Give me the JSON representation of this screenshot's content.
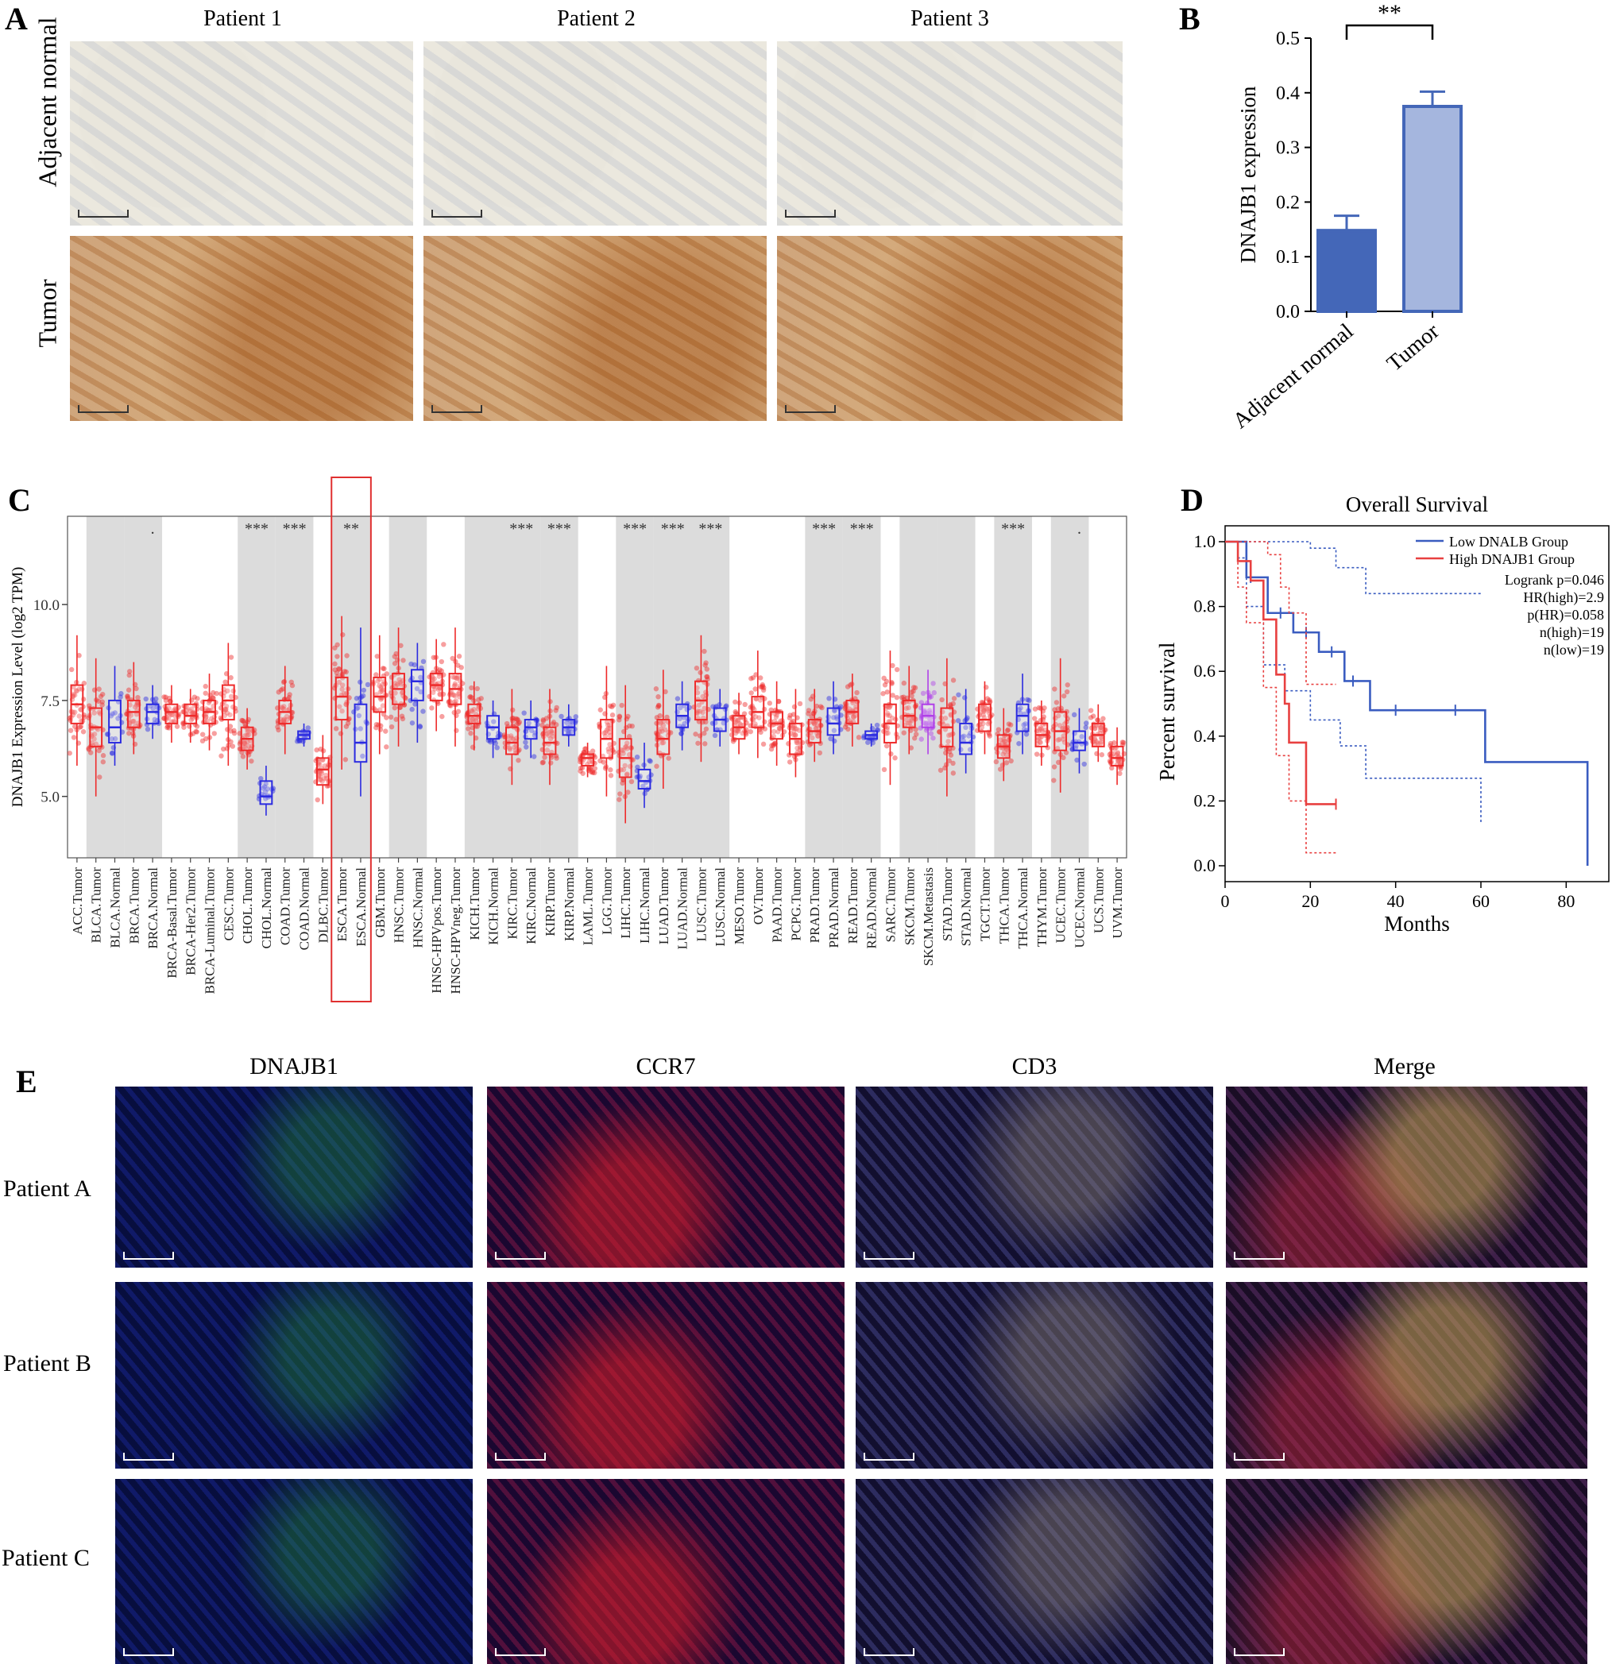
{
  "panels": {
    "a": {
      "letter": "A",
      "columns": [
        "Patient 1",
        "Patient 2",
        "Patient 3"
      ],
      "rows": [
        "Adjacent normal",
        "Tumor"
      ]
    },
    "b": {
      "letter": "B"
    },
    "c": {
      "letter": "C"
    },
    "d": {
      "letter": "D"
    },
    "e": {
      "letter": "E",
      "columns": [
        "DNAJB1",
        "CCR7",
        "CD3",
        "Merge"
      ],
      "rows": [
        "Patient A",
        "Patient B",
        "Patient C"
      ]
    }
  },
  "chart_data": [
    {
      "id": "B",
      "type": "bar",
      "categories": [
        "Adjacent normal",
        "Tumor"
      ],
      "values": [
        0.148,
        0.375
      ],
      "errors": [
        0.027,
        0.027
      ],
      "ylabel": "DNAJB1 expression",
      "ylim": [
        0,
        0.5
      ],
      "yticks": [
        "0.0",
        "0.1",
        "0.2",
        "0.3",
        "0.4",
        "0.5"
      ],
      "significance": "**",
      "colors": [
        "#4467b8",
        "#a5b6de"
      ],
      "edge_color": "#4467b8"
    },
    {
      "id": "C",
      "type": "box",
      "ylabel": "DNAJB1 Expression Level (log2 TPM)",
      "ylim": [
        3.4,
        12.3
      ],
      "yticks": [
        "5.0",
        "7.5",
        "10.0"
      ],
      "categories": [
        {
          "label": "ACC.Tumor",
          "kind": "T",
          "median": 7.4,
          "q1": 6.9,
          "q3": 7.9,
          "lo": 5.8,
          "hi": 9.2
        },
        {
          "label": "BLCA.Tumor",
          "kind": "T",
          "median": 6.8,
          "q1": 6.3,
          "q3": 7.3,
          "lo": 5.0,
          "hi": 8.6
        },
        {
          "label": "BLCA.Normal",
          "kind": "N",
          "median": 6.8,
          "q1": 6.4,
          "q3": 7.5,
          "lo": 5.8,
          "hi": 8.4
        },
        {
          "label": "BRCA.Tumor",
          "kind": "T",
          "median": 7.2,
          "q1": 6.8,
          "q3": 7.5,
          "lo": 6.1,
          "hi": 8.5
        },
        {
          "label": "BRCA.Normal",
          "kind": "N",
          "median": 7.2,
          "q1": 6.9,
          "q3": 7.4,
          "lo": 6.5,
          "hi": 7.9
        },
        {
          "label": "BRCA-Basal.Tumor",
          "kind": "T",
          "median": 7.2,
          "q1": 6.9,
          "q3": 7.4,
          "lo": 6.4,
          "hi": 7.9
        },
        {
          "label": "BRCA-Her2.Tumor",
          "kind": "T",
          "median": 7.1,
          "q1": 6.9,
          "q3": 7.4,
          "lo": 6.4,
          "hi": 7.8
        },
        {
          "label": "BRCA-Luminal.Tumor",
          "kind": "T",
          "median": 7.2,
          "q1": 6.9,
          "q3": 7.5,
          "lo": 6.2,
          "hi": 8.2
        },
        {
          "label": "CESC.Tumor",
          "kind": "T",
          "median": 7.5,
          "q1": 7.0,
          "q3": 7.9,
          "lo": 5.8,
          "hi": 9.0
        },
        {
          "label": "CHOL.Tumor",
          "kind": "T",
          "median": 6.5,
          "q1": 6.2,
          "q3": 6.8,
          "lo": 5.7,
          "hi": 7.3
        },
        {
          "label": "CHOL.Normal",
          "kind": "N",
          "median": 5.0,
          "q1": 4.8,
          "q3": 5.4,
          "lo": 4.5,
          "hi": 5.8
        },
        {
          "label": "COAD.Tumor",
          "kind": "T",
          "median": 7.2,
          "q1": 6.9,
          "q3": 7.5,
          "lo": 6.1,
          "hi": 8.4
        },
        {
          "label": "COAD.Normal",
          "kind": "N",
          "median": 6.6,
          "q1": 6.5,
          "q3": 6.7,
          "lo": 6.3,
          "hi": 6.9
        },
        {
          "label": "DLBC.Tumor",
          "kind": "T",
          "median": 5.7,
          "q1": 5.3,
          "q3": 6.0,
          "lo": 4.8,
          "hi": 6.6
        },
        {
          "label": "ESCA.Tumor",
          "kind": "T",
          "median": 7.6,
          "q1": 7.0,
          "q3": 8.1,
          "lo": 5.7,
          "hi": 9.7
        },
        {
          "label": "ESCA.Normal",
          "kind": "N",
          "median": 6.4,
          "q1": 5.9,
          "q3": 7.4,
          "lo": 5.0,
          "hi": 9.4
        },
        {
          "label": "GBM.Tumor",
          "kind": "T",
          "median": 7.6,
          "q1": 7.2,
          "q3": 8.1,
          "lo": 6.1,
          "hi": 9.2
        },
        {
          "label": "HNSC.Tumor",
          "kind": "T",
          "median": 7.8,
          "q1": 7.4,
          "q3": 8.2,
          "lo": 6.3,
          "hi": 9.4
        },
        {
          "label": "HNSC.Normal",
          "kind": "N",
          "median": 8.0,
          "q1": 7.5,
          "q3": 8.3,
          "lo": 6.4,
          "hi": 9.0
        },
        {
          "label": "HNSC-HPVpos.Tumor",
          "kind": "T",
          "median": 7.9,
          "q1": 7.5,
          "q3": 8.2,
          "lo": 6.7,
          "hi": 9.1
        },
        {
          "label": "HNSC-HPVneg.Tumor",
          "kind": "T",
          "median": 7.8,
          "q1": 7.4,
          "q3": 8.2,
          "lo": 6.3,
          "hi": 9.4
        },
        {
          "label": "KICH.Tumor",
          "kind": "T",
          "median": 7.1,
          "q1": 6.9,
          "q3": 7.4,
          "lo": 6.2,
          "hi": 8.0
        },
        {
          "label": "KICH.Normal",
          "kind": "N",
          "median": 6.8,
          "q1": 6.5,
          "q3": 7.1,
          "lo": 6.0,
          "hi": 7.5
        },
        {
          "label": "KIRC.Tumor",
          "kind": "T",
          "median": 6.4,
          "q1": 6.1,
          "q3": 6.8,
          "lo": 5.3,
          "hi": 7.8
        },
        {
          "label": "KIRC.Normal",
          "kind": "N",
          "median": 6.8,
          "q1": 6.5,
          "q3": 7.0,
          "lo": 6.0,
          "hi": 7.5
        },
        {
          "label": "KIRP.Tumor",
          "kind": "T",
          "median": 6.4,
          "q1": 6.1,
          "q3": 6.8,
          "lo": 5.3,
          "hi": 7.8
        },
        {
          "label": "KIRP.Normal",
          "kind": "N",
          "median": 6.8,
          "q1": 6.6,
          "q3": 7.0,
          "lo": 6.3,
          "hi": 7.4
        },
        {
          "label": "LAML.Tumor",
          "kind": "T",
          "median": 6.0,
          "q1": 5.8,
          "q3": 6.1,
          "lo": 5.5,
          "hi": 6.4
        },
        {
          "label": "LGG.Tumor",
          "kind": "T",
          "median": 6.5,
          "q1": 6.0,
          "q3": 7.0,
          "lo": 5.0,
          "hi": 8.4
        },
        {
          "label": "LIHC.Tumor",
          "kind": "T",
          "median": 6.0,
          "q1": 5.5,
          "q3": 6.5,
          "lo": 4.3,
          "hi": 7.9
        },
        {
          "label": "LIHC.Normal",
          "kind": "N",
          "median": 5.4,
          "q1": 5.2,
          "q3": 5.7,
          "lo": 4.7,
          "hi": 6.4
        },
        {
          "label": "LUAD.Tumor",
          "kind": "T",
          "median": 6.5,
          "q1": 6.1,
          "q3": 7.0,
          "lo": 5.2,
          "hi": 8.3
        },
        {
          "label": "LUAD.Normal",
          "kind": "N",
          "median": 7.1,
          "q1": 6.8,
          "q3": 7.4,
          "lo": 6.2,
          "hi": 8.0
        },
        {
          "label": "LUSC.Tumor",
          "kind": "T",
          "median": 7.5,
          "q1": 7.0,
          "q3": 8.0,
          "lo": 5.9,
          "hi": 9.2
        },
        {
          "label": "LUSC.Normal",
          "kind": "N",
          "median": 7.0,
          "q1": 6.7,
          "q3": 7.3,
          "lo": 6.3,
          "hi": 7.8
        },
        {
          "label": "MESO.Tumor",
          "kind": "T",
          "median": 6.8,
          "q1": 6.5,
          "q3": 7.1,
          "lo": 6.1,
          "hi": 7.7
        },
        {
          "label": "OV.Tumor",
          "kind": "T",
          "median": 7.2,
          "q1": 6.8,
          "q3": 7.6,
          "lo": 6.0,
          "hi": 8.8
        },
        {
          "label": "PAAD.Tumor",
          "kind": "T",
          "median": 6.9,
          "q1": 6.5,
          "q3": 7.2,
          "lo": 5.8,
          "hi": 8.0
        },
        {
          "label": "PCPG.Tumor",
          "kind": "T",
          "median": 6.5,
          "q1": 6.1,
          "q3": 6.9,
          "lo": 5.5,
          "hi": 7.8
        },
        {
          "label": "PRAD.Tumor",
          "kind": "T",
          "median": 6.7,
          "q1": 6.4,
          "q3": 7.0,
          "lo": 5.9,
          "hi": 7.8
        },
        {
          "label": "PRAD.Normal",
          "kind": "N",
          "median": 6.9,
          "q1": 6.6,
          "q3": 7.3,
          "lo": 6.1,
          "hi": 8.0
        },
        {
          "label": "READ.Tumor",
          "kind": "T",
          "median": 7.2,
          "q1": 6.9,
          "q3": 7.5,
          "lo": 6.3,
          "hi": 8.2
        },
        {
          "label": "READ.Normal",
          "kind": "N",
          "median": 6.6,
          "q1": 6.5,
          "q3": 6.7,
          "lo": 6.3,
          "hi": 6.9
        },
        {
          "label": "SARC.Tumor",
          "kind": "T",
          "median": 6.9,
          "q1": 6.4,
          "q3": 7.4,
          "lo": 5.3,
          "hi": 8.8
        },
        {
          "label": "SKCM.Tumor",
          "kind": "T",
          "median": 7.1,
          "q1": 6.8,
          "q3": 7.5,
          "lo": 6.1,
          "hi": 8.4
        },
        {
          "label": "SKCM.Metastasis",
          "kind": "M",
          "median": 7.1,
          "q1": 6.8,
          "q3": 7.4,
          "lo": 6.1,
          "hi": 8.3
        },
        {
          "label": "STAD.Tumor",
          "kind": "T",
          "median": 6.8,
          "q1": 6.3,
          "q3": 7.3,
          "lo": 5.0,
          "hi": 8.6
        },
        {
          "label": "STAD.Normal",
          "kind": "N",
          "median": 6.4,
          "q1": 6.1,
          "q3": 6.9,
          "lo": 5.6,
          "hi": 7.8
        },
        {
          "label": "TGCT.Tumor",
          "kind": "T",
          "median": 7.0,
          "q1": 6.7,
          "q3": 7.4,
          "lo": 6.1,
          "hi": 8.0
        },
        {
          "label": "THCA.Tumor",
          "kind": "T",
          "median": 6.3,
          "q1": 6.0,
          "q3": 6.6,
          "lo": 5.4,
          "hi": 7.3
        },
        {
          "label": "THCA.Normal",
          "kind": "N",
          "median": 7.1,
          "q1": 6.7,
          "q3": 7.4,
          "lo": 6.1,
          "hi": 8.2
        },
        {
          "label": "THYM.Tumor",
          "kind": "T",
          "median": 6.6,
          "q1": 6.3,
          "q3": 6.9,
          "lo": 5.8,
          "hi": 7.5
        },
        {
          "label": "UCEC.Tumor",
          "kind": "T",
          "median": 6.7,
          "q1": 6.2,
          "q3": 7.2,
          "lo": 5.1,
          "hi": 8.6
        },
        {
          "label": "UCEC.Normal",
          "kind": "N",
          "median": 6.4,
          "q1": 6.2,
          "q3": 6.7,
          "lo": 5.6,
          "hi": 7.3
        },
        {
          "label": "UCS.Tumor",
          "kind": "T",
          "median": 6.6,
          "q1": 6.3,
          "q3": 6.9,
          "lo": 5.9,
          "hi": 7.4
        },
        {
          "label": "UVM.Tumor",
          "kind": "T",
          "median": 6.0,
          "q1": 5.8,
          "q3": 6.3,
          "lo": 5.3,
          "hi": 6.8
        }
      ],
      "shaded_groups": [
        [
          1,
          2
        ],
        [
          3,
          4
        ],
        [
          9,
          10
        ],
        [
          11,
          12
        ],
        [
          14,
          15
        ],
        [
          17,
          18
        ],
        [
          21,
          22
        ],
        [
          23,
          24
        ],
        [
          25,
          26
        ],
        [
          29,
          30
        ],
        [
          31,
          32
        ],
        [
          33,
          34
        ],
        [
          39,
          40
        ],
        [
          41,
          42
        ],
        [
          44,
          45
        ],
        [
          46,
          47
        ],
        [
          49,
          50
        ],
        [
          52,
          53
        ]
      ],
      "significance": [
        {
          "index": 4,
          "text": "."
        },
        {
          "index": 9.5,
          "text": "***"
        },
        {
          "index": 11.5,
          "text": "***"
        },
        {
          "index": 14.5,
          "text": "**"
        },
        {
          "index": 23.5,
          "text": "***"
        },
        {
          "index": 25.5,
          "text": "***"
        },
        {
          "index": 29.5,
          "text": "***"
        },
        {
          "index": 31.5,
          "text": "***"
        },
        {
          "index": 33.5,
          "text": "***"
        },
        {
          "index": 39.5,
          "text": "***"
        },
        {
          "index": 41.5,
          "text": "***"
        },
        {
          "index": 49.5,
          "text": "***"
        },
        {
          "index": 53,
          "text": "."
        }
      ],
      "highlight_indices": [
        14,
        15
      ],
      "colors": {
        "tumor": "#ee2b2b",
        "normal": "#2b2be0",
        "metastasis": "#b040e8",
        "shade": "#dcdcdc",
        "highlight": "#e03030"
      }
    },
    {
      "id": "D",
      "type": "line",
      "title": "Overall Survival",
      "xlabel": "Months",
      "ylabel": "Percent survival",
      "xlim": [
        0,
        90
      ],
      "ylim": [
        0,
        1.0
      ],
      "xticks": [
        "0",
        "20",
        "40",
        "60",
        "80"
      ],
      "yticks": [
        "0.0",
        "0.2",
        "0.4",
        "0.6",
        "0.8",
        "1.0"
      ],
      "legend": [
        "Low DNALB Group",
        "High DNAJB1 Group"
      ],
      "stats": [
        "Logrank p=0.046",
        "HR(high)=2.9",
        "p(HR)=0.058",
        "n(high)=19",
        "n(low)=19"
      ],
      "series": [
        {
          "name": "Low DNALB Group",
          "color": "#3a5cc0",
          "x": [
            0,
            3,
            5,
            6,
            9,
            10,
            15,
            16,
            19,
            21,
            22,
            27,
            28,
            33,
            34,
            60,
            61,
            84,
            85
          ],
          "y": [
            1.0,
            1.0,
            0.89,
            0.89,
            0.89,
            0.78,
            0.78,
            0.72,
            0.72,
            0.72,
            0.66,
            0.66,
            0.57,
            0.57,
            0.48,
            0.48,
            0.32,
            0.32,
            0.0
          ],
          "censor": [
            [
              6,
              0.89
            ],
            [
              13,
              0.78
            ],
            [
              19,
              0.72
            ],
            [
              25,
              0.66
            ],
            [
              30,
              0.57
            ],
            [
              40,
              0.48
            ],
            [
              54,
              0.48
            ]
          ],
          "ci_upper": {
            "x": [
              0,
              5,
              9,
              15,
              20,
              26,
              33,
              60
            ],
            "y": [
              1.0,
              1.0,
              1.0,
              1.0,
              0.98,
              0.92,
              0.84,
              0.84
            ]
          },
          "ci_lower": {
            "x": [
              0,
              3,
              5,
              9,
              14,
              20,
              27,
              33,
              60
            ],
            "y": [
              1.0,
              0.95,
              0.8,
              0.62,
              0.54,
              0.45,
              0.37,
              0.27,
              0.13
            ]
          }
        },
        {
          "name": "High DNAJB1 Group",
          "color": "#e84040",
          "x": [
            0,
            2,
            3,
            5,
            6,
            8,
            9,
            10,
            12,
            13,
            14,
            15,
            19,
            26
          ],
          "y": [
            1.0,
            1.0,
            0.94,
            0.94,
            0.88,
            0.88,
            0.76,
            0.76,
            0.59,
            0.59,
            0.5,
            0.38,
            0.19,
            0.19
          ],
          "censor": [
            [
              26,
              0.19
            ]
          ],
          "ci_upper": {
            "x": [
              0,
              3,
              8,
              10,
              13,
              15,
              19,
              26
            ],
            "y": [
              1.0,
              1.0,
              1.0,
              0.96,
              0.86,
              0.78,
              0.56,
              0.56
            ]
          },
          "ci_lower": {
            "x": [
              0,
              3,
              5,
              9,
              12,
              15,
              19,
              26
            ],
            "y": [
              1.0,
              0.86,
              0.75,
              0.55,
              0.34,
              0.2,
              0.04,
              0.04
            ]
          }
        }
      ]
    }
  ]
}
